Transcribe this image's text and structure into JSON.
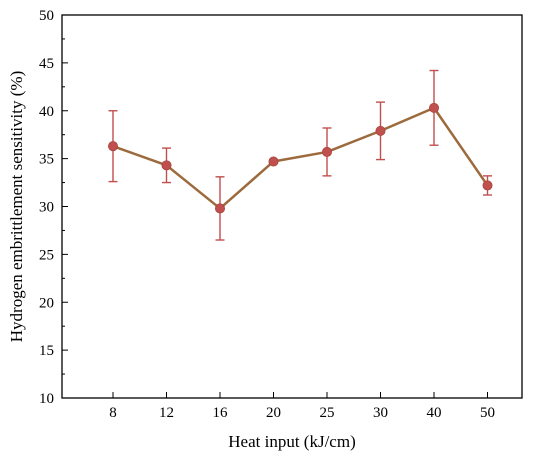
{
  "chart_data": {
    "type": "line",
    "title": "",
    "xlabel": "Heat input (kJ/cm)",
    "ylabel": "Hydrogen embrittlement sensitivity (%)",
    "categories": [
      "8",
      "12",
      "16",
      "20",
      "25",
      "30",
      "40",
      "50"
    ],
    "series": [
      {
        "values": [
          36.3,
          34.3,
          29.8,
          34.7,
          35.7,
          37.9,
          40.3,
          32.2
        ],
        "error_upper": [
          40.0,
          36.1,
          33.1,
          34.9,
          38.2,
          40.9,
          44.2,
          33.2
        ],
        "error_lower": [
          32.6,
          32.5,
          26.5,
          34.5,
          33.2,
          34.9,
          36.4,
          31.2
        ]
      }
    ],
    "ylim": [
      10,
      50
    ],
    "yticks": [
      10,
      15,
      20,
      25,
      30,
      35,
      40,
      45,
      50
    ],
    "grid": false,
    "legend": "none",
    "colors": {
      "line": "#9c6a3c",
      "marker": "#c0504d",
      "errorbar": "#c0504d",
      "axis": "#000000"
    }
  }
}
